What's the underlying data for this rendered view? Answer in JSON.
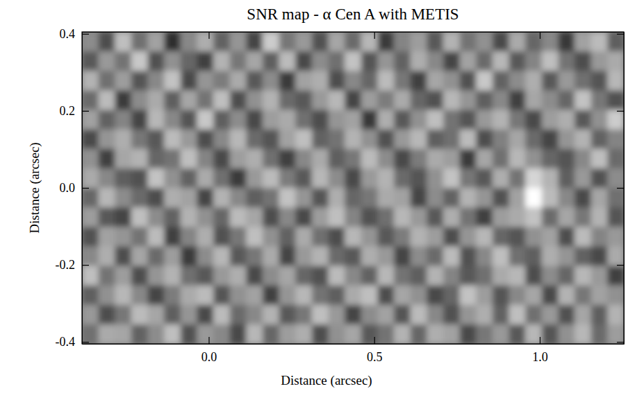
{
  "chart_data": {
    "type": "heatmap",
    "title": "SNR map - α Cen A with METIS",
    "x_label": "Distance (arcsec)",
    "y_label": "Distance (arcsec)",
    "xlim": [
      -0.383,
      1.254
    ],
    "ylim": [
      -0.405,
      0.405
    ],
    "xticks": [
      {
        "value": 0,
        "label": "0.0"
      },
      {
        "value": 0.5,
        "label": "0.5"
      },
      {
        "value": 1,
        "label": "1.0"
      }
    ],
    "yticks": [
      -0.4,
      -0.2,
      {
        "value": 0,
        "label": "0.0"
      },
      0.2,
      0.4
    ],
    "zlim": [
      -3,
      3
    ],
    "z": [
      [
        0.3,
        -1.2,
        1.5,
        -0.4,
        0.8,
        -1.9,
        0.2,
        1.1,
        -0.7,
        0.5,
        -1.4,
        1.8,
        -0.2,
        0.6,
        -1.1,
        0.9,
        -0.5,
        1.3,
        -1.6,
        0.1,
        0.7,
        -0.9,
        1.2,
        -0.3,
        0.4,
        -1.3,
        1.0,
        -0.6,
        0.2,
        -1.7,
        0.8,
        1.4,
        -0.8
      ],
      [
        -0.9,
        0.6,
        -0.3,
        1.7,
        -1.1,
        0.4,
        -0.6,
        -1.5,
        1.2,
        -0.2,
        0.9,
        -0.8,
        1.4,
        -1.3,
        0.3,
        -0.4,
        1.6,
        -1.0,
        0.5,
        -0.7,
        1.1,
        0.2,
        -1.4,
        0.8,
        -0.5,
        1.3,
        -0.9,
        0.1,
        1.5,
        -0.3,
        -1.2,
        0.6,
        1.0
      ],
      [
        1.2,
        -0.4,
        0.7,
        -1.0,
        0.2,
        1.6,
        -1.3,
        0.5,
        -0.1,
        1.0,
        -0.9,
        0.3,
        -1.6,
        0.8,
        1.1,
        -1.2,
        0.2,
        -0.6,
        1.4,
        -0.2,
        -1.5,
        0.9,
        0.4,
        -1.1,
        1.7,
        -0.7,
        0.3,
        1.1,
        -0.9,
        0.6,
        -0.4,
        -1.0,
        1.3
      ],
      [
        -0.5,
        1.4,
        -1.6,
        0.3,
        1.0,
        -0.8,
        0.9,
        -0.3,
        1.5,
        -1.2,
        0.4,
        1.2,
        -0.5,
        -0.9,
        0.6,
        1.3,
        -1.4,
        0.7,
        -0.1,
        1.0,
        -0.6,
        -1.1,
        1.3,
        0.5,
        -0.8,
        0.2,
        -1.5,
        0.9,
        0.3,
        -0.6,
        1.6,
        -0.2,
        -1.1
      ],
      [
        0.8,
        -0.7,
        0.1,
        -1.4,
        1.3,
        0.2,
        -1.0,
        1.7,
        -0.8,
        0.3,
        -1.3,
        0.7,
        1.0,
        -0.4,
        -1.2,
        0.5,
        0.8,
        -1.7,
        1.1,
        -0.9,
        0.4,
        1.5,
        -0.3,
        -1.0,
        0.6,
        1.2,
        -0.2,
        -1.3,
        0.7,
        1.1,
        -0.9,
        0.4,
        1.8
      ],
      [
        -1.3,
        0.5,
        1.1,
        -0.2,
        -0.9,
        1.4,
        0.6,
        -1.2,
        0.2,
        1.3,
        -0.5,
        -1.0,
        0.8,
        1.5,
        -0.7,
        -0.3,
        1.2,
        0.4,
        -1.1,
        0.6,
        1.3,
        -0.8,
        -0.4,
        1.4,
        -1.2,
        0.0,
        0.9,
        -0.5,
        -1.4,
        0.5,
        1.2,
        -0.7,
        0.1
      ],
      [
        0.4,
        -1.5,
        0.9,
        1.2,
        -0.6,
        -0.3,
        1.5,
        0.1,
        -1.3,
        0.7,
        1.1,
        -0.4,
        -1.5,
        0.2,
        1.0,
        -0.8,
        -0.2,
        1.4,
        0.3,
        -1.3,
        -0.1,
        1.0,
        0.7,
        -1.6,
        0.9,
        -0.4,
        1.3,
        0.4,
        -0.6,
        -1.0,
        0.2,
        1.5,
        -0.5
      ],
      [
        1.0,
        0.2,
        -0.8,
        -1.1,
        1.6,
        0.4,
        -0.7,
        1.0,
        -0.4,
        -1.6,
        0.6,
        1.4,
        -0.1,
        -0.9,
        1.3,
        0.3,
        -1.3,
        0.6,
        1.2,
        -0.5,
        -1.0,
        0.4,
        1.6,
        -0.2,
        -0.9,
        1.1,
        -0.3,
        2.0,
        1.2,
        -0.8,
        0.6,
        -1.1,
        0.3
      ],
      [
        -0.6,
        1.3,
        0.3,
        -0.5,
        -1.2,
        1.1,
        0.8,
        -1.4,
        1.2,
        0.2,
        -0.8,
        -0.3,
        1.6,
        0.5,
        -1.0,
        1.1,
        -0.6,
        -0.2,
        1.0,
        0.8,
        -1.4,
        0.3,
        -0.7,
        1.2,
        0.5,
        -1.1,
        0.8,
        5.5,
        1.4,
        0.2,
        -1.3,
        0.9,
        -0.4
      ],
      [
        0.7,
        -0.9,
        -1.4,
        1.5,
        0.3,
        -0.7,
        1.2,
        0.4,
        -0.6,
        1.4,
        0.9,
        -1.2,
        0.2,
        -1.3,
        0.7,
        1.5,
        0.1,
        -1.1,
        -0.4,
        1.3,
        0.6,
        -0.9,
        1.1,
        -0.3,
        -1.5,
        0.7,
        1.0,
        1.6,
        -0.5,
        0.9,
        -0.2,
        1.2,
        -1.0
      ],
      [
        -1.1,
        0.8,
        0.5,
        -0.3,
        1.4,
        -1.5,
        0.1,
        1.1,
        -1.1,
        -0.2,
        1.5,
        0.4,
        -0.7,
        1.0,
        -0.4,
        -1.2,
        1.3,
        0.5,
        -0.9,
        -0.1,
        1.2,
        0.7,
        -1.2,
        0.5,
        1.3,
        -0.6,
        -1.0,
        0.4,
        0.8,
        -1.2,
        1.4,
        0.1,
        0.6
      ],
      [
        0.2,
        1.1,
        -1.2,
        0.9,
        -0.5,
        0.7,
        -1.6,
        0.3,
        1.3,
        -0.9,
        -0.2,
        1.0,
        -1.4,
        0.6,
        1.2,
        -0.5,
        -0.9,
        1.1,
        0.6,
        -1.4,
        0.3,
        -0.5,
        1.4,
        -1.1,
        0.2,
        1.5,
        -0.4,
        -0.8,
        1.1,
        0.5,
        -0.7,
        -1.3,
        1.0
      ],
      [
        1.5,
        -0.3,
        0.7,
        -1.2,
        0.5,
        1.2,
        -0.4,
        -0.9,
        0.6,
        1.1,
        -1.3,
        0.3,
        0.9,
        -0.6,
        -1.1,
        1.4,
        0.2,
        -0.7,
        1.3,
        -0.3,
        -0.8,
        1.2,
        0.1,
        -0.9,
        -0.4,
        1.0,
        1.3,
        -1.2,
        0.3,
        -0.6,
        1.3,
        0.6,
        -1.5
      ],
      [
        -0.8,
        0.4,
        1.3,
        0.2,
        -1.4,
        -0.1,
        1.0,
        1.4,
        -1.0,
        0.4,
        0.8,
        -1.5,
        0.5,
        1.3,
        -0.3,
        -0.8,
        1.0,
        1.5,
        -1.2,
        0.9,
        0.4,
        -1.3,
        -0.6,
        1.6,
        0.7,
        -1.0,
        0.2,
        0.9,
        -1.3,
        1.2,
        -0.2,
        0.8,
        0.4
      ],
      [
        0.6,
        -1.2,
        -0.2,
        1.4,
        0.9,
        -0.8,
        0.5,
        -1.3,
        1.4,
        -0.5,
        0.2,
        1.2,
        -0.9,
        -0.2,
        1.5,
        0.6,
        -1.4,
        0.3,
        0.8,
        -1.0,
        1.4,
        0.2,
        -1.1,
        0.5,
        1.1,
        -0.7,
        1.5,
        -0.4,
        0.6,
        -1.1,
        0.9,
        -0.8,
        1.2
      ],
      [
        -0.4,
        1.0,
        0.9,
        -0.7,
        0.3,
        1.5,
        -1.1,
        0.6,
        0.2,
        -1.3,
        1.3,
        -0.6,
        0.7,
        1.1,
        -1.2,
        0.4,
        0.9,
        -0.9,
        -0.3,
        1.2,
        -0.6,
        1.1,
        0.8,
        -1.3,
        -0.2,
        0.6,
        -0.9,
        1.3,
        -1.0,
        0.4,
        1.3,
        -0.5,
        0.7
      ]
    ]
  }
}
